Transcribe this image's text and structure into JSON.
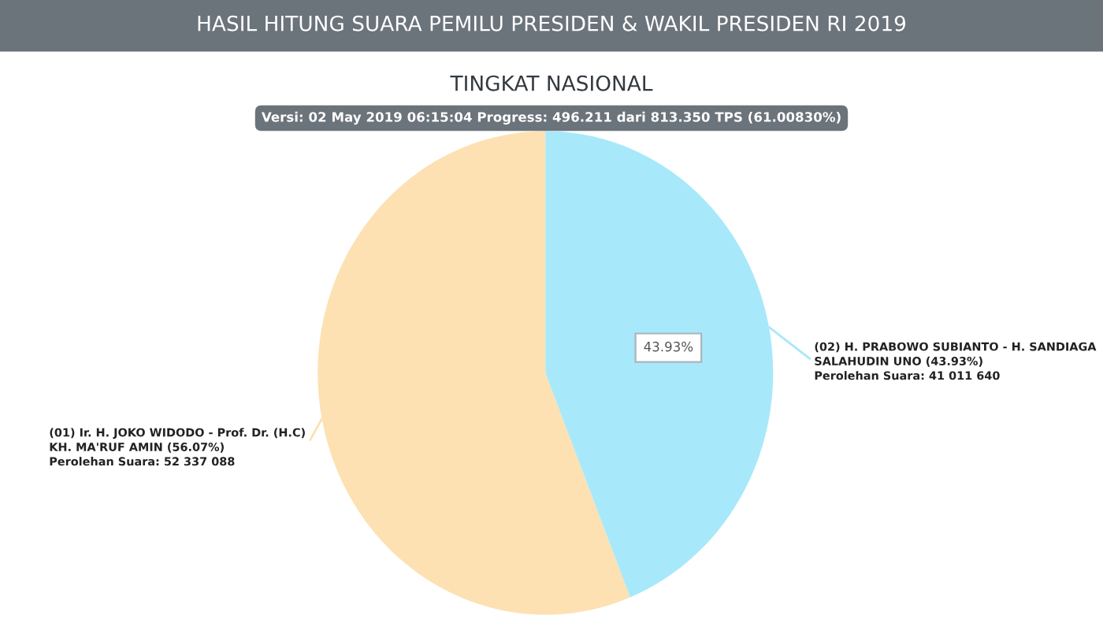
{
  "chart_data": {
    "type": "pie",
    "title": "HASIL HITUNG SUARA PEMILU PRESIDEN & WAKIL PRESIDEN RI 2019",
    "subtitle": "TINGKAT NASIONAL",
    "annotations": [
      "Versi: 02 May 2019 06:15:04 Progress: 496.211 dari 813.350 TPS (61.00830%)"
    ],
    "categories": [
      "(01) Ir. H. JOKO WIDODO - Prof. Dr. (H.C)\nKH. MA'RUF AMIN (56.07%)\nPerolehan Suara: 52 337 088",
      "(02) H. PRABOWO SUBIANTO - H. SANDIAGA\nSALAHUDIN UNO (43.93%)\nPerolehan Suara: 41 011 640"
    ],
    "values": [
      56.07,
      43.93
    ],
    "colors": [
      "#fde1b2",
      "#a8e8fb"
    ],
    "value_labels": [
      null,
      "43.93%"
    ]
  }
}
